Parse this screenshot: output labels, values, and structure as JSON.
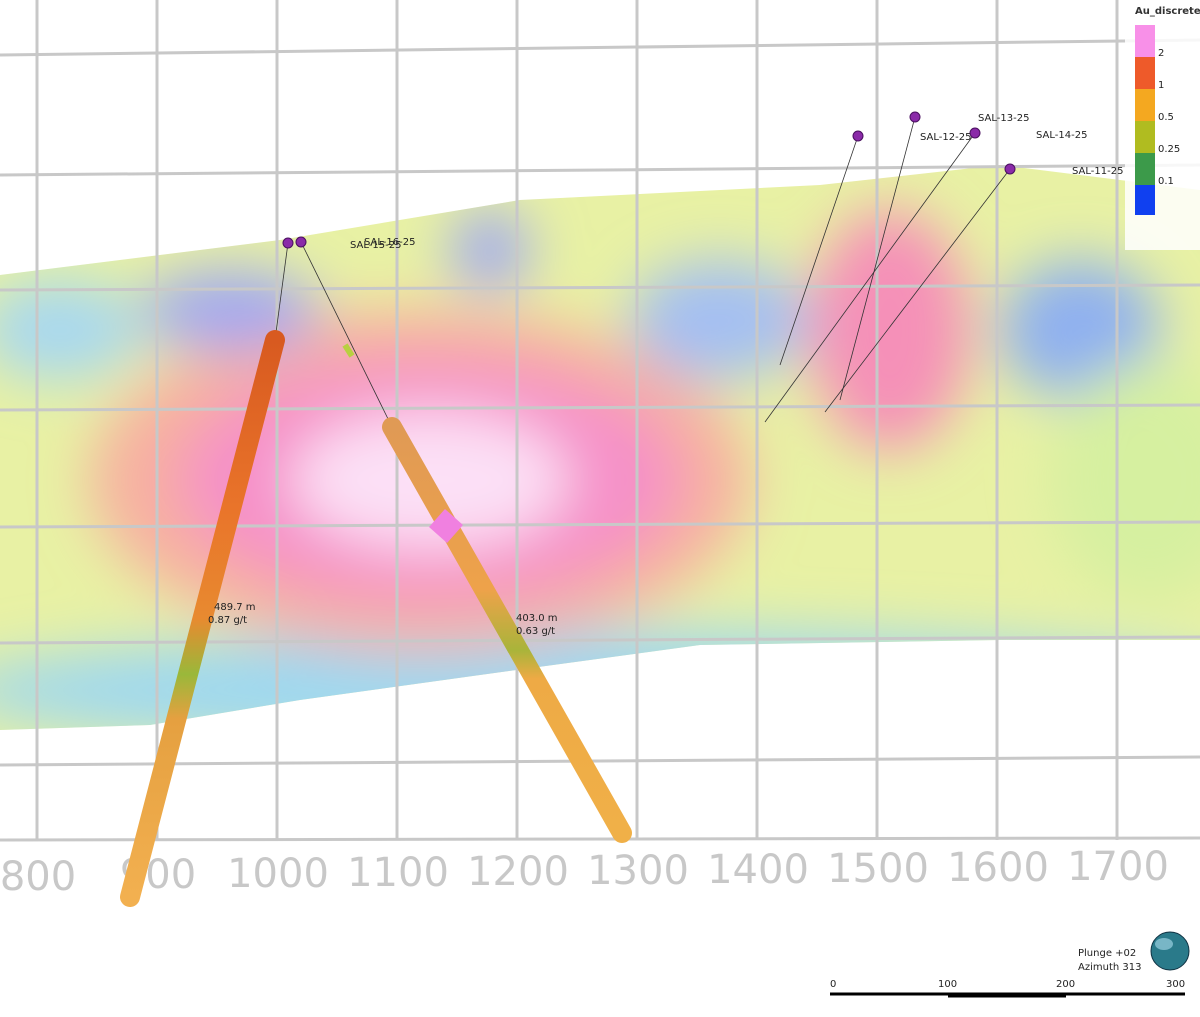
{
  "legend": {
    "title": "Au_discrete",
    "labels": [
      "2",
      "1",
      "0.5",
      "0.25",
      "0.1"
    ]
  },
  "axis_labels": [
    "800",
    "900",
    "1000",
    "1100",
    "1200",
    "1300",
    "1400",
    "1500",
    "1600",
    "1700"
  ],
  "holes": [
    "SAL-15-25",
    "SAL-16-25",
    "SAL-13-25",
    "SAL-12-25",
    "SAL-14-25",
    "SAL-11-25"
  ],
  "intercepts": [
    {
      "length": "489.7 m",
      "grade": "0.87 g/t"
    },
    {
      "length": "403.0 m",
      "grade": "0.63 g/t"
    }
  ],
  "view": {
    "plunge": "Plunge +02",
    "azimuth": "Azimuth 313"
  },
  "scale_bar": [
    "0",
    "100",
    "200",
    "300"
  ]
}
